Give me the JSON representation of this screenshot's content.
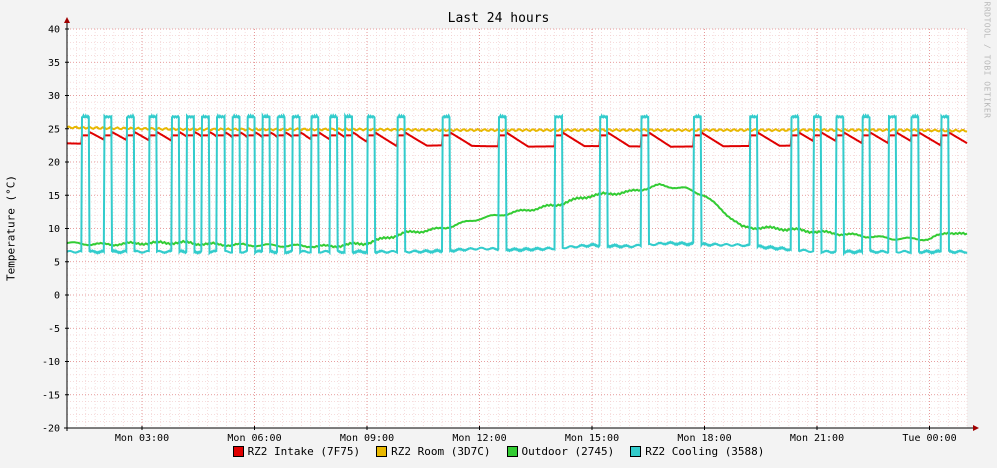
{
  "chart_data": {
    "type": "line",
    "title": "Last 24 hours",
    "ylabel": "Temperature (°C)",
    "watermark": "RRDTOOL / TOBI OETIKER",
    "ylim": [
      -20,
      40
    ],
    "y_ticks": [
      40,
      35,
      30,
      25,
      20,
      15,
      10,
      5,
      0,
      -5,
      -10,
      -15,
      -20
    ],
    "xlim_hours": [
      0,
      24
    ],
    "x_ticks": [
      {
        "h": 2,
        "label": "Mon 03:00"
      },
      {
        "h": 5,
        "label": "Mon 06:00"
      },
      {
        "h": 8,
        "label": "Mon 09:00"
      },
      {
        "h": 11,
        "label": "Mon 12:00"
      },
      {
        "h": 14,
        "label": "Mon 15:00"
      },
      {
        "h": 17,
        "label": "Mon 18:00"
      },
      {
        "h": 20,
        "label": "Mon 21:00"
      },
      {
        "h": 23,
        "label": "Tue 00:00"
      }
    ],
    "grid": true,
    "legend_position": "bottom",
    "series": [
      {
        "name": "RZ2 Intake (7F75)",
        "color": "#e00000",
        "baseline": 22.5,
        "peak": 24.5,
        "x": [
          0,
          2,
          4,
          6,
          8,
          10,
          12,
          14,
          16,
          18,
          20,
          22,
          24
        ],
        "y": [
          22.8,
          22.6,
          22.3,
          22.4,
          22.3,
          22.5,
          22.3,
          22.4,
          22.3,
          22.4,
          22.5,
          22.5,
          22.5
        ]
      },
      {
        "name": "RZ2 Room (3D7C)",
        "color": "#e8b800",
        "x": [
          0,
          2,
          4,
          6,
          8,
          10,
          12,
          14,
          16,
          18,
          20,
          22,
          24
        ],
        "y": [
          25.2,
          25.0,
          24.9,
          24.9,
          24.9,
          24.8,
          24.8,
          24.8,
          24.8,
          24.8,
          24.8,
          24.8,
          24.7
        ]
      },
      {
        "name": "Outdoor (2745)",
        "color": "#33cc33",
        "x": [
          0,
          1,
          2,
          3,
          4,
          5,
          6,
          7,
          8,
          9,
          10,
          11,
          12,
          13,
          14,
          15,
          15.8,
          16.5,
          17,
          18,
          19,
          20,
          21,
          22,
          23,
          23.5,
          24
        ],
        "y": [
          7.8,
          7.6,
          7.8,
          7.9,
          7.6,
          7.5,
          7.4,
          7.3,
          7.8,
          9.3,
          10.0,
          11.5,
          12.5,
          13.5,
          15.0,
          15.5,
          16.5,
          16.0,
          15.0,
          10.2,
          10.0,
          9.5,
          9.0,
          8.5,
          8.4,
          9.5,
          9.0
        ]
      },
      {
        "name": "RZ2 Cooling (3588)",
        "color": "#33cccc",
        "baseline_x": [
          0,
          8,
          9,
          10,
          11,
          12,
          13,
          14,
          15,
          16,
          17,
          18,
          19,
          20,
          24
        ],
        "baseline_y": [
          6.5,
          6.5,
          6.5,
          6.6,
          7.0,
          6.8,
          7.0,
          7.5,
          7.3,
          7.8,
          7.6,
          7.5,
          7.0,
          6.5,
          6.5
        ],
        "peak": 27.0,
        "pulse_starts_h": [
          0.4,
          1.0,
          1.6,
          2.2,
          2.8,
          3.2,
          3.6,
          4.0,
          4.4,
          4.8,
          5.2,
          5.6,
          6.0,
          6.5,
          7.0,
          7.4,
          8.0,
          8.8,
          10.0,
          11.5,
          13.0,
          14.2,
          15.3,
          16.7,
          18.2,
          19.3,
          19.9,
          20.5,
          21.2,
          21.9,
          22.5,
          23.3
        ],
        "pulse_width_h": 0.2
      }
    ]
  }
}
